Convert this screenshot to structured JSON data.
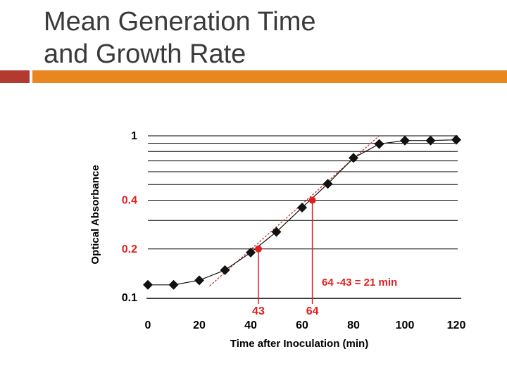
{
  "slide": {
    "title_line1": "Mean Generation Time",
    "title_line2": "and Growth Rate"
  },
  "colors": {
    "title": "#3a3a3a",
    "accent_bar": "#e8861f",
    "accent_block": "#b33a2e",
    "highlight": "#e01f1f",
    "data_marker": "#111111"
  },
  "chart_data": {
    "type": "scatter",
    "y_scale": "log",
    "title": "",
    "xlabel": "Time after Inoculation (min)",
    "ylabel": "Optical Absorbance",
    "xlim": [
      0,
      120
    ],
    "ylim": [
      0.1,
      1
    ],
    "x_ticks": [
      0,
      20,
      40,
      60,
      80,
      100,
      120
    ],
    "y_ticks_labeled": [
      {
        "value": 1,
        "label": "1",
        "color": "#000000"
      },
      {
        "value": 0.4,
        "label": "0.4",
        "color": "#e01f1f"
      },
      {
        "value": 0.2,
        "label": "0.2",
        "color": "#e01f1f"
      },
      {
        "value": 0.1,
        "label": "0.1",
        "color": "#000000"
      }
    ],
    "y_gridlines": [
      0.2,
      0.3,
      0.4,
      0.5,
      0.6,
      0.7,
      0.8,
      0.9,
      1.0
    ],
    "series": [
      {
        "name": "Optical absorbance",
        "marker": "diamond",
        "x": [
          0,
          10,
          20,
          30,
          40,
          50,
          60,
          70,
          80,
          90,
          100,
          110,
          120
        ],
        "y": [
          0.12,
          0.12,
          0.128,
          0.148,
          0.19,
          0.255,
          0.36,
          0.505,
          0.73,
          0.89,
          0.935,
          0.935,
          0.945
        ]
      }
    ],
    "fit_line": {
      "x": [
        24,
        90
      ],
      "y": [
        0.118,
        1.0
      ]
    },
    "highlight_points": [
      {
        "x": 43,
        "y": 0.2,
        "label": "43"
      },
      {
        "x": 64,
        "y": 0.4,
        "label": "64"
      }
    ],
    "annotation": "64 -43 = 21 min"
  }
}
